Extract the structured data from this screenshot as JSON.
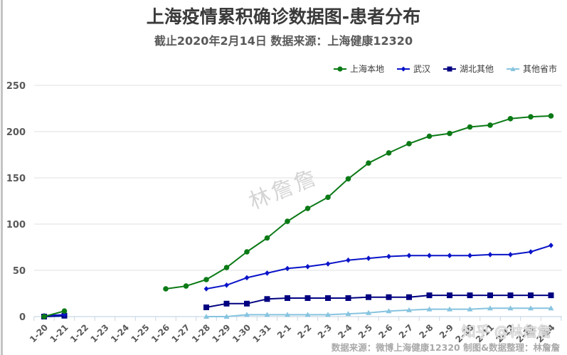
{
  "header": {
    "title": "上海疫情累积确诊数据图-患者分布",
    "subtitle": "截止2020年2月14日 数据来源：上海健康12320"
  },
  "watermark": "林詹詹",
  "zhihu_watermark": "知乎 @林詹詹",
  "footer": {
    "source": "数据来源：微博上海健康12320 制图&数据整理：林詹詹"
  },
  "legend": [
    {
      "label": "上海本地",
      "color": "#0b7a16",
      "marker": "circle"
    },
    {
      "label": "武汉",
      "color": "#0a14c8",
      "marker": "diamond"
    },
    {
      "label": "湖北其他",
      "color": "#000080",
      "marker": "square"
    },
    {
      "label": "其他省市",
      "color": "#87c4e0",
      "marker": "triangle"
    }
  ],
  "chart_data": {
    "type": "line",
    "title": "上海疫情累积确诊数据图-患者分布",
    "subtitle": "截止2020年2月14日 数据来源：上海健康12320",
    "xlabel": "",
    "ylabel": "",
    "ylim": [
      0,
      250
    ],
    "yticks": [
      0,
      50,
      100,
      150,
      200,
      250
    ],
    "grid": true,
    "legend_position": "top-right",
    "categories": [
      "1-20",
      "1-21",
      "1-22",
      "1-23",
      "1-24",
      "1-25",
      "1-26",
      "1-27",
      "1-28",
      "1-29",
      "1-30",
      "1-31",
      "2-1",
      "2-2",
      "2-3",
      "2-4",
      "2-5",
      "2-6",
      "2-7",
      "2-8",
      "2-9",
      "2-10",
      "2-11",
      "2-12",
      "2-13",
      "2-14"
    ],
    "series": [
      {
        "name": "上海本地",
        "color": "#0b7a16",
        "marker": "circle",
        "values": [
          0,
          6,
          null,
          null,
          null,
          null,
          30,
          33,
          40,
          53,
          70,
          85,
          103,
          117,
          129,
          149,
          166,
          177,
          187,
          195,
          198,
          205,
          207,
          214,
          216,
          217
        ]
      },
      {
        "name": "武汉",
        "color": "#0a14c8",
        "marker": "diamond",
        "values": [
          1,
          2,
          null,
          null,
          null,
          null,
          null,
          null,
          30,
          34,
          42,
          47,
          52,
          54,
          57,
          61,
          63,
          65,
          66,
          66,
          66,
          66,
          67,
          67,
          70,
          77
        ]
      },
      {
        "name": "湖北其他",
        "color": "#000080",
        "marker": "square",
        "values": [
          0,
          1,
          null,
          null,
          null,
          null,
          null,
          null,
          10,
          14,
          14,
          19,
          20,
          20,
          20,
          20,
          21,
          21,
          21,
          23,
          23,
          23,
          23,
          23,
          23,
          23
        ]
      },
      {
        "name": "其他省市",
        "color": "#87c4e0",
        "marker": "triangle",
        "values": [
          0,
          0,
          null,
          null,
          null,
          null,
          null,
          null,
          0,
          0,
          2,
          2,
          2,
          2,
          2,
          3,
          4,
          6,
          7,
          8,
          8,
          8,
          9,
          9,
          9,
          9
        ]
      }
    ]
  }
}
